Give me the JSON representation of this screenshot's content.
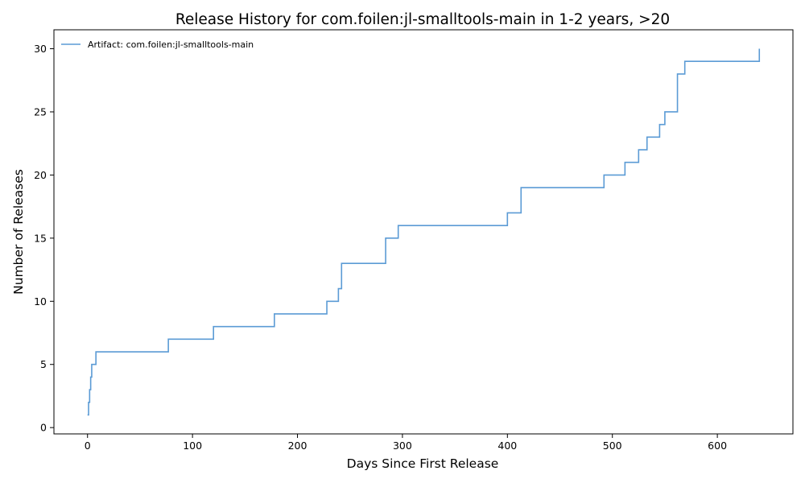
{
  "chart_data": {
    "type": "line",
    "step": "post",
    "title": "Release History for com.foilen:jl-smalltools-main in 1-2 years, >20",
    "xlabel": "Days Since First Release",
    "ylabel": "Number of Releases",
    "xlim": [
      -32,
      672
    ],
    "ylim": [
      -0.5,
      31.5
    ],
    "xticks": [
      0,
      100,
      200,
      300,
      400,
      500,
      600
    ],
    "yticks": [
      0,
      5,
      10,
      15,
      20,
      25,
      30
    ],
    "grid": false,
    "legend_position": "top-left",
    "series": [
      {
        "name": "Artifact: com.foilen:jl-smalltools-main",
        "color": "#5b9bd5",
        "x": [
          0,
          1,
          2,
          3,
          4,
          8,
          77,
          120,
          178,
          228,
          239,
          242,
          284,
          296,
          400,
          413,
          492,
          512,
          525,
          533,
          545,
          550,
          562,
          569,
          640
        ],
        "y": [
          1,
          2,
          3,
          4,
          5,
          6,
          7,
          8,
          9,
          10,
          11,
          13,
          15,
          16,
          17,
          19,
          20,
          21,
          22,
          23,
          24,
          25,
          28,
          29,
          30
        ]
      }
    ]
  }
}
